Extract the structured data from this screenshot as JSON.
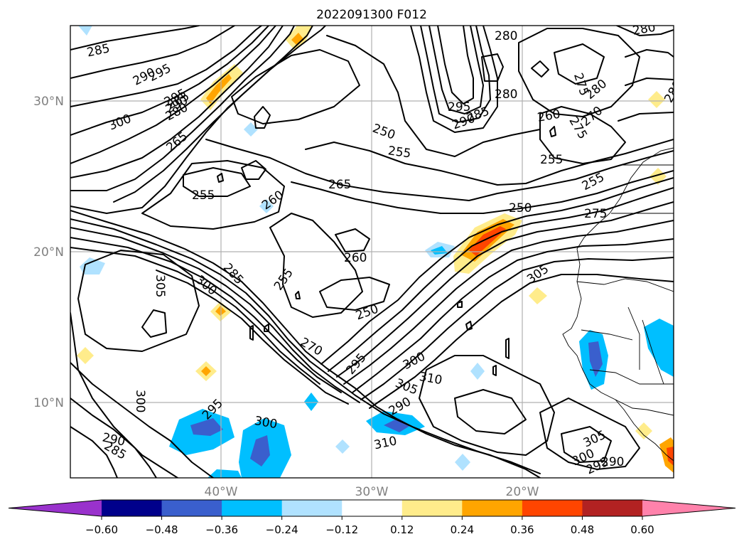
{
  "title": "2022091300 F012",
  "colors": {
    "grid": "#b0b0b0",
    "tick_label": "#808080",
    "contour": "#000000"
  },
  "lat_labels": [
    "30°N",
    "20°N",
    "10°N"
  ],
  "lon_labels": [
    "40°W",
    "30°W",
    "20°W"
  ],
  "colorbar": {
    "tick_labels": [
      "−0.60",
      "−0.48",
      "−0.36",
      "−0.24",
      "−0.12",
      "0.12",
      "0.24",
      "0.36",
      "0.48",
      "0.60"
    ],
    "bins": [
      {
        "color": "#9932cc",
        "kind": "extend-low"
      },
      {
        "color": "#00008b"
      },
      {
        "color": "#3a5fcd"
      },
      {
        "color": "#00bfff"
      },
      {
        "color": "#b0e2ff"
      },
      {
        "color": "#ffffff"
      },
      {
        "color": "#ffec8b"
      },
      {
        "color": "#ffa500"
      },
      {
        "color": "#ff4500"
      },
      {
        "color": "#b22222"
      },
      {
        "color": "#ff82ab",
        "kind": "extend-high"
      }
    ]
  },
  "contour_labels": [
    "285",
    "290",
    "295",
    "295",
    "290",
    "285",
    "280",
    "300",
    "265",
    "255",
    "260",
    "265",
    "250",
    "255",
    "280",
    "280",
    "295",
    "290",
    "285",
    "275",
    "280",
    "260",
    "270",
    "275",
    "255",
    "255",
    "250",
    "275",
    "260",
    "255",
    "285",
    "300",
    "305",
    "250",
    "270",
    "295",
    "300",
    "310",
    "305",
    "290",
    "310",
    "305",
    "300",
    "295",
    "290",
    "305",
    "300",
    "295",
    "290",
    "285",
    "300",
    "280",
    "280"
  ]
}
